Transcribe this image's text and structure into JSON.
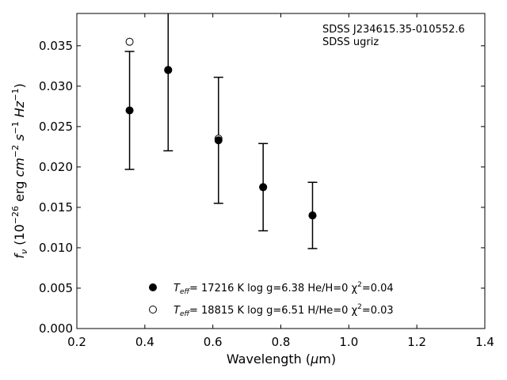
{
  "chart_data": {
    "type": "scatter",
    "xlabel": "Wavelength (μm)",
    "ylabel": "f_ν (10⁻²⁶ erg cm⁻² s⁻¹ Hz⁻¹)",
    "xlim": [
      0.2,
      1.4
    ],
    "ylim": [
      0.0,
      0.039
    ],
    "xticks": [
      0.2,
      0.4,
      0.6,
      0.8,
      1.0,
      1.2,
      1.4
    ],
    "xtick_labels": [
      "0.2",
      "0.4",
      "0.6",
      "0.8",
      "1.0",
      "1.2",
      "1.4"
    ],
    "yticks": [
      0.0,
      0.005,
      0.01,
      0.015,
      0.02,
      0.025,
      0.03,
      0.035
    ],
    "ytick_labels": [
      "0.000",
      "0.005",
      "0.010",
      "0.015",
      "0.020",
      "0.025",
      "0.030",
      "0.035"
    ],
    "grid": false,
    "legend_position": "bottom-center",
    "annotations": [
      "SDSS J234615.35-010552.6",
      "SDSS ugriz"
    ],
    "observed": {
      "x": [
        0.3551,
        0.4686,
        0.6166,
        0.748,
        0.8932
      ],
      "y": [
        0.027,
        0.032,
        0.0233,
        0.0175,
        0.014
      ],
      "err": [
        0.0073,
        0.01,
        0.0078,
        0.0054,
        0.0041
      ]
    },
    "series": [
      {
        "name": "T_eff= 17216 K  log g=6.38  He/H=0  χ²=0.04",
        "marker": "filled-circle",
        "x": [
          0.3551,
          0.4686,
          0.6166,
          0.748,
          0.8932
        ],
        "y": [
          0.027,
          0.032,
          0.0233,
          0.0175,
          0.014
        ]
      },
      {
        "name": "T_eff= 18815 K  log g=6.51  H/He=0  χ²=0.03",
        "marker": "open-circle",
        "x": [
          0.3551,
          0.4686,
          0.6166,
          0.748,
          0.8932
        ],
        "y": [
          0.0355,
          0.032,
          0.0235,
          0.0175,
          0.014
        ]
      }
    ]
  },
  "legend": {
    "filled": {
      "teff_pre": "T",
      "teff_sub": "eff",
      "rest": "= 17216 K  log g=6.38  He/H=0  χ",
      "sup": "2",
      "tail": "=0.04"
    },
    "open": {
      "teff_pre": "T",
      "teff_sub": "eff",
      "rest": "= 18815 K  log g=6.51  H/He=0  χ",
      "sup": "2",
      "tail": "=0.03"
    }
  },
  "ylabel_parts": {
    "f": "f",
    "nu": "ν",
    "open": " (10",
    "exp1": "−26",
    "erg": " erg ",
    "cm": "cm",
    "exp2": "−2",
    "s": " s",
    "exp3": "−1",
    "hz": " Hz",
    "exp4": "−1",
    "close": ")"
  },
  "xlabel_parts": {
    "pre": "Wavelength (",
    "mu": "μ",
    "post": "m)"
  },
  "colors": {
    "marker": "#000000",
    "axis": "#000000",
    "background": "#ffffff"
  }
}
